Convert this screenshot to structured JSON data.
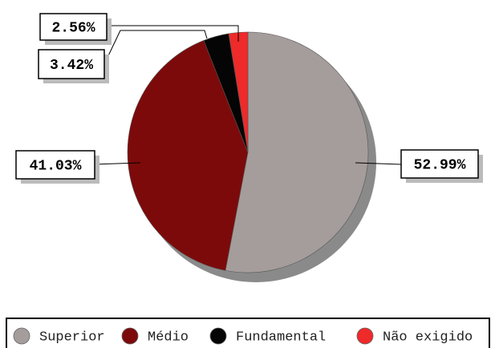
{
  "chart_data": {
    "type": "pie",
    "categories": [
      "Superior",
      "Médio",
      "Fundamental",
      "Não exigido"
    ],
    "values": [
      52.99,
      41.03,
      3.42,
      2.56
    ],
    "value_labels": [
      "52.99%",
      "41.03%",
      "3.42%",
      "2.56%"
    ],
    "colors": [
      "#a59d9b",
      "#7d0a0a",
      "#050505",
      "#ee2a2a"
    ],
    "legend": "bottom"
  }
}
